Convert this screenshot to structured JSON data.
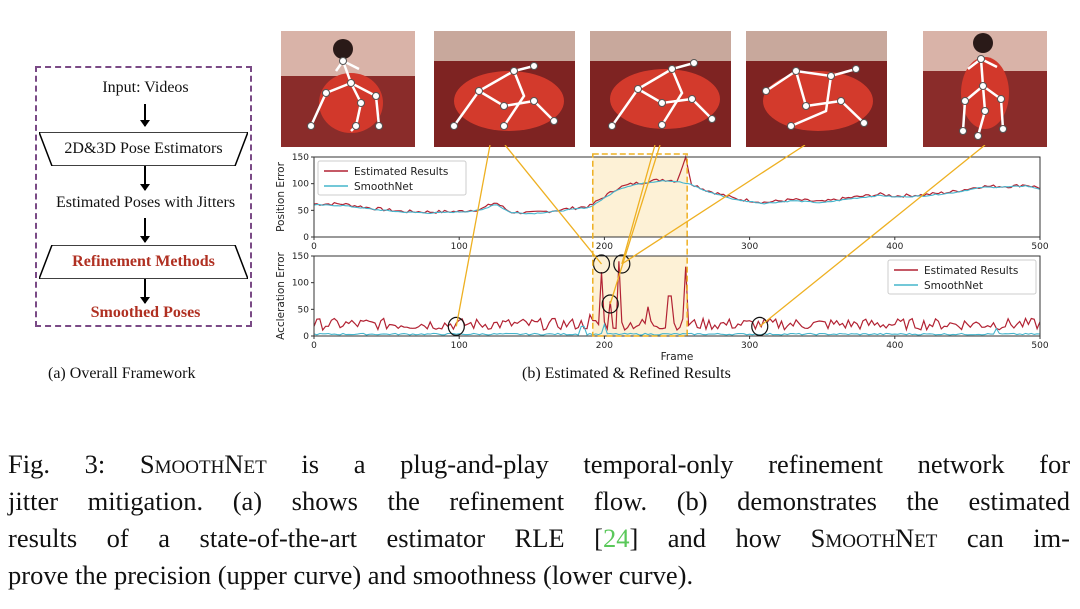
{
  "panel_a": {
    "input": "Input: Videos",
    "estimators": "2D&3D Pose Estimators",
    "estimated": "Estimated Poses with Jitters",
    "refinement": "Refinement Methods",
    "smoothed": "Smoothed Poses",
    "caption": "(a) Overall Framework"
  },
  "panel_b": {
    "caption": "(b) Estimated & Refined Results"
  },
  "colors": {
    "estimated": "#b22233",
    "smoothnet": "#45b5cc",
    "highlight": "#fdf1d6",
    "connector": "#eeb022",
    "framework_border": "#7a4a86",
    "emphasis_text": "#b03022"
  },
  "caption": {
    "fig": "Fig. 3:",
    "line1_name": "SmoothNet",
    "line1_rest": "is a plug-and-play temporal-only refinement network for",
    "line2": "jitter mitigation. (a) shows the refinement flow. (b) demonstrates the estimated",
    "line3_a": "results of a state-of-the-art estimator RLE [",
    "line3_ref": "24",
    "line3_b": "] and how",
    "line3_name": "SmoothNet",
    "line3_c": "can im-",
    "line4": "prove the precision (upper curve) and smoothness (lower curve)."
  },
  "chart_data": [
    {
      "type": "line",
      "ylabel": "Position Error",
      "xlabel": "",
      "xlim": [
        0,
        500
      ],
      "ylim": [
        0,
        150
      ],
      "xticks": [
        "0",
        "100",
        "200",
        "300",
        "400",
        "500"
      ],
      "yticks": [
        "0",
        "50",
        "100",
        "150"
      ],
      "legend_position": "top-left",
      "highlight_range": [
        192,
        257
      ],
      "series": [
        {
          "name": "Estimated Results",
          "x": [
            0,
            20,
            40,
            60,
            80,
            100,
            115,
            125,
            135,
            150,
            170,
            190,
            200,
            210,
            220,
            230,
            240,
            250,
            256,
            260,
            270,
            290,
            310,
            330,
            350,
            370,
            390,
            400,
            420,
            440,
            460,
            480,
            490,
            500
          ],
          "y": [
            62,
            62,
            54,
            48,
            47,
            48,
            52,
            65,
            47,
            45,
            51,
            58,
            76,
            93,
            100,
            104,
            108,
            105,
            150,
            100,
            88,
            72,
            65,
            70,
            66,
            74,
            80,
            77,
            79,
            85,
            95,
            95,
            98,
            92
          ]
        },
        {
          "name": "SmoothNet",
          "x": [
            0,
            20,
            40,
            60,
            80,
            100,
            115,
            125,
            135,
            150,
            170,
            190,
            200,
            210,
            220,
            230,
            240,
            250,
            260,
            270,
            290,
            310,
            330,
            350,
            370,
            390,
            400,
            420,
            440,
            460,
            480,
            490,
            500
          ],
          "y": [
            60,
            59,
            52,
            47,
            45,
            47,
            50,
            62,
            46,
            44,
            49,
            56,
            73,
            90,
            98,
            102,
            106,
            104,
            98,
            86,
            70,
            63,
            68,
            64,
            72,
            78,
            75,
            77,
            83,
            93,
            94,
            96,
            90
          ]
        }
      ]
    },
    {
      "type": "line",
      "ylabel": "Accleration Error",
      "xlabel": "Frame",
      "xlim": [
        0,
        500
      ],
      "ylim": [
        0,
        150
      ],
      "xticks": [
        "0",
        "100",
        "200",
        "300",
        "400",
        "500"
      ],
      "yticks": [
        "0",
        "50",
        "100",
        "150"
      ],
      "legend_position": "top-right",
      "highlight_range": [
        192,
        257
      ],
      "series": [
        {
          "name": "Estimated Results",
          "spikes": [
            [
              198,
              120
            ],
            [
              210,
              140
            ],
            [
              204,
              65
            ],
            [
              230,
              55
            ],
            [
              245,
              75
            ],
            [
              256,
              130
            ],
            [
              190,
              40
            ]
          ],
          "baseline": 20
        },
        {
          "name": "SmoothNet",
          "spikes": [
            [
              185,
              18
            ],
            [
              200,
              22
            ],
            [
              470,
              14
            ]
          ],
          "baseline": 2
        }
      ]
    }
  ]
}
